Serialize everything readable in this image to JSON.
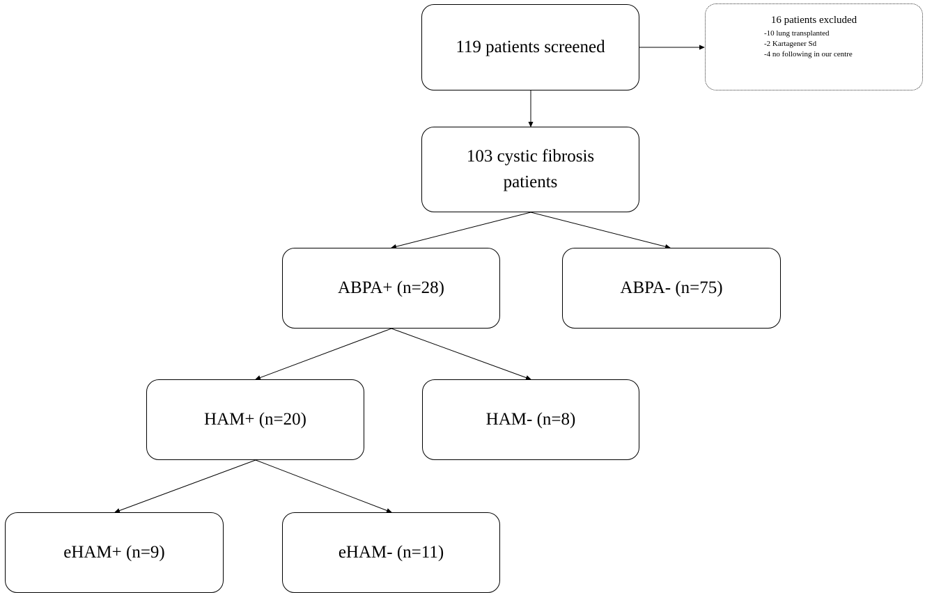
{
  "screened": {
    "label": "119 patients screened"
  },
  "excluded": {
    "title": "16 patients excluded",
    "items": [
      "-10 lung transplanted",
      "-2 Kartagener Sd",
      "-4 no following in our centre"
    ]
  },
  "cf": {
    "line1": "103 cystic fibrosis",
    "line2": "patients"
  },
  "abpa_pos": {
    "label": "ABPA+ (n=28)"
  },
  "abpa_neg": {
    "label": "ABPA- (n=75)"
  },
  "ham_pos": {
    "label": "HAM+ (n=20)"
  },
  "ham_neg": {
    "label": "HAM- (n=8)"
  },
  "eham_pos": {
    "label": "eHAM+ (n=9)"
  },
  "eham_neg": {
    "label": "eHAM- (n=11)"
  }
}
